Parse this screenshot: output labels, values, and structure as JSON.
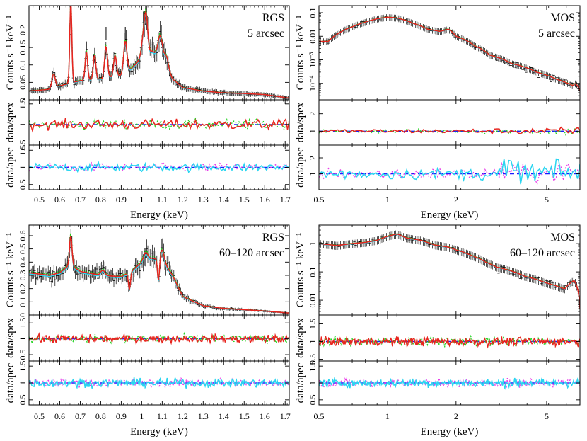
{
  "colors": {
    "data": "#000000",
    "model_red": "#e8251f",
    "model_green": "#22d422",
    "model_cyan": "#2ad5f0",
    "model_magenta": "#e83ce8",
    "reference_line": "#1a1aff"
  },
  "chart_data": [
    {
      "id": "rgs-5",
      "type": "line",
      "instrument": "RGS",
      "region": "5 arcsec",
      "xlabel": "Energy (keV)",
      "x_ticks": [
        "0.5",
        "0.6",
        "0.7",
        "0.8",
        "0.9",
        "1",
        "1.1",
        "1.2",
        "1.3",
        "1.4",
        "1.5",
        "1.6",
        "1.7"
      ],
      "xlim": [
        0.45,
        1.72
      ],
      "x_scale": "linear",
      "spectrum": {
        "ylabel": "Counts s⁻¹ keV⁻¹",
        "y_scale": "linear",
        "ylim": [
          0,
          0.27
        ],
        "y_ticks": [
          "0",
          "0.05",
          "0.1",
          "0.15",
          "0.2"
        ],
        "continuum": [
          [
            0.45,
            0.025
          ],
          [
            0.55,
            0.03
          ],
          [
            0.6,
            0.04
          ],
          [
            0.7,
            0.055
          ],
          [
            0.8,
            0.06
          ],
          [
            0.9,
            0.07
          ],
          [
            0.95,
            0.09
          ],
          [
            1.0,
            0.12
          ],
          [
            1.05,
            0.14
          ],
          [
            1.1,
            0.12
          ],
          [
            1.15,
            0.06
          ],
          [
            1.2,
            0.035
          ],
          [
            1.3,
            0.025
          ],
          [
            1.4,
            0.02
          ],
          [
            1.5,
            0.018
          ],
          [
            1.6,
            0.015
          ],
          [
            1.72,
            0.005
          ]
        ],
        "lines": [
          [
            0.654,
            0.23,
            0.005
          ],
          [
            0.57,
            0.04,
            0.008
          ],
          [
            0.73,
            0.08,
            0.006
          ],
          [
            0.77,
            0.07,
            0.006
          ],
          [
            0.826,
            0.09,
            0.007
          ],
          [
            0.87,
            0.06,
            0.007
          ],
          [
            0.92,
            0.09,
            0.008
          ],
          [
            1.01,
            0.06,
            0.01
          ],
          [
            1.022,
            0.09,
            0.008
          ],
          [
            1.09,
            0.06,
            0.01
          ],
          [
            1.12,
            0.03,
            0.01
          ]
        ],
        "marker_ticks": [
          0.826,
          0.92
        ],
        "series": [
          {
            "name": "",
            "color": "model_green",
            "style": "dotted"
          },
          {
            "name": "",
            "color": "model_cyan",
            "style": "solid"
          },
          {
            "name": "",
            "color": "model_red",
            "style": "solid"
          }
        ]
      },
      "ratio_panels": [
        {
          "ylabel": "data/spex",
          "ylim": [
            0.5,
            1.6
          ],
          "y_ticks": [
            "0.5",
            "1",
            "1.5"
          ],
          "series_colors": [
            "model_green",
            "model_red"
          ]
        },
        {
          "ylabel": "data/apec",
          "ylim": [
            0.35,
            1.65
          ],
          "y_ticks": [
            "0.5",
            "1",
            "1.5"
          ],
          "series_colors": [
            "model_magenta",
            "model_cyan"
          ]
        }
      ]
    },
    {
      "id": "mos-5",
      "type": "line",
      "instrument": "MOS",
      "region": "5 arcsec",
      "xlabel": "Energy (keV)",
      "x_ticks": [
        "0.5",
        "1",
        "2",
        "5"
      ],
      "xlim": [
        0.5,
        7.0
      ],
      "x_scale": "log",
      "spectrum": {
        "ylabel": "Counts s⁻¹ keV⁻¹",
        "y_scale": "log",
        "ylim": [
          2e-05,
          0.2
        ],
        "y_ticks": [
          "10⁻⁴",
          "10⁻³",
          "0.01",
          "0.1"
        ],
        "curve": [
          [
            0.55,
            0.006
          ],
          [
            0.6,
            0.012
          ],
          [
            0.7,
            0.025
          ],
          [
            0.8,
            0.04
          ],
          [
            0.9,
            0.055
          ],
          [
            1.0,
            0.065
          ],
          [
            1.1,
            0.06
          ],
          [
            1.3,
            0.035
          ],
          [
            1.5,
            0.02
          ],
          [
            1.7,
            0.016
          ],
          [
            1.85,
            0.02
          ],
          [
            2.0,
            0.01
          ],
          [
            2.4,
            0.004
          ],
          [
            2.8,
            0.0016
          ],
          [
            3.5,
            0.0007
          ],
          [
            4.5,
            0.0003
          ],
          [
            5.5,
            0.00015
          ],
          [
            6.5,
            8e-05
          ],
          [
            6.7,
            0.0001
          ],
          [
            7.0,
            5e-05
          ]
        ],
        "series": [
          {
            "name": "",
            "color": "model_green",
            "style": "dotted"
          },
          {
            "name": "",
            "color": "model_cyan",
            "style": "solid"
          },
          {
            "name": "",
            "color": "model_red",
            "style": "solid"
          }
        ]
      },
      "ratio_panels": [
        {
          "ylabel": "data/spex",
          "ylim": [
            0.2,
            2.8
          ],
          "y_ticks": [
            "1",
            "2"
          ],
          "series_colors": [
            "model_green",
            "model_red"
          ]
        },
        {
          "ylabel": "data/apec",
          "ylim": [
            0.0,
            2.8
          ],
          "y_ticks": [
            "1",
            "2"
          ],
          "series_colors": [
            "model_magenta",
            "model_cyan"
          ]
        }
      ]
    },
    {
      "id": "rgs-60",
      "type": "line",
      "instrument": "RGS",
      "region": "60–120 arcsec",
      "xlabel": "Energy (keV)",
      "x_ticks": [
        "0.5",
        "0.6",
        "0.7",
        "0.8",
        "0.9",
        "1",
        "1.1",
        "1.2",
        "1.3",
        "1.4",
        "1.5",
        "1.6",
        "1.7"
      ],
      "xlim": [
        0.45,
        1.72
      ],
      "x_scale": "linear",
      "spectrum": {
        "ylabel": "Counts s⁻¹ keV⁻¹",
        "y_scale": "linear",
        "ylim": [
          0,
          0.68
        ],
        "y_ticks": [
          "0",
          "0.1",
          "0.2",
          "0.3",
          "0.4",
          "0.5",
          "0.6"
        ],
        "continuum": [
          [
            0.45,
            0.32
          ],
          [
            0.5,
            0.31
          ],
          [
            0.55,
            0.3
          ],
          [
            0.6,
            0.32
          ],
          [
            0.65,
            0.38
          ],
          [
            0.7,
            0.33
          ],
          [
            0.8,
            0.3
          ],
          [
            0.9,
            0.29
          ],
          [
            0.95,
            0.33
          ],
          [
            1.0,
            0.4
          ],
          [
            1.05,
            0.43
          ],
          [
            1.1,
            0.42
          ],
          [
            1.15,
            0.3
          ],
          [
            1.2,
            0.14
          ],
          [
            1.3,
            0.07
          ],
          [
            1.4,
            0.05
          ],
          [
            1.5,
            0.04
          ],
          [
            1.6,
            0.03
          ],
          [
            1.72,
            0.015
          ]
        ],
        "lines": [
          [
            0.654,
            0.22,
            0.006
          ],
          [
            0.81,
            0.04,
            0.01
          ],
          [
            1.02,
            0.06,
            0.01
          ],
          [
            1.1,
            0.07,
            0.01
          ]
        ],
        "absorptions": [
          [
            0.94,
            0.13,
            0.005
          ],
          [
            1.082,
            0.17,
            0.005
          ]
        ],
        "series": [
          {
            "name": "",
            "color": "model_green",
            "style": "dotted"
          },
          {
            "name": "",
            "color": "model_cyan",
            "style": "solid"
          },
          {
            "name": "",
            "color": "model_red",
            "style": "solid"
          }
        ]
      },
      "ratio_panels": [
        {
          "ylabel": "data/spex",
          "ylim": [
            0.3,
            1.75
          ],
          "y_ticks": [
            "0.5",
            "1",
            "1.5"
          ],
          "series_colors": [
            "model_green",
            "model_red"
          ]
        },
        {
          "ylabel": "data/apec",
          "ylim": [
            0.35,
            1.65
          ],
          "y_ticks": [
            "0.5",
            "1",
            "1.5"
          ],
          "series_colors": [
            "model_magenta",
            "model_cyan"
          ]
        }
      ]
    },
    {
      "id": "mos-60",
      "type": "line",
      "instrument": "MOS",
      "region": "60–120 arcsec",
      "xlabel": "Energy (keV)",
      "x_ticks": [
        "0.5",
        "1",
        "2",
        "5"
      ],
      "xlim": [
        0.5,
        7.0
      ],
      "x_scale": "log",
      "spectrum": {
        "ylabel": "Counts s⁻¹ keV⁻¹",
        "y_scale": "log",
        "ylim": [
          0.003,
          4.5
        ],
        "y_ticks": [
          "0.01",
          "0.1",
          "1"
        ],
        "curve": [
          [
            0.5,
            1.0
          ],
          [
            0.6,
            0.85
          ],
          [
            0.7,
            1.0
          ],
          [
            0.8,
            1.1
          ],
          [
            0.9,
            1.3
          ],
          [
            1.0,
            1.8
          ],
          [
            1.1,
            2.2
          ],
          [
            1.2,
            1.6
          ],
          [
            1.4,
            1.3
          ],
          [
            1.6,
            0.9
          ],
          [
            1.85,
            0.75
          ],
          [
            2.0,
            0.6
          ],
          [
            2.3,
            0.4
          ],
          [
            2.7,
            0.22
          ],
          [
            3.0,
            0.15
          ],
          [
            4.0,
            0.07
          ],
          [
            5.0,
            0.04
          ],
          [
            6.0,
            0.025
          ],
          [
            6.6,
            0.05
          ],
          [
            6.8,
            0.03
          ],
          [
            7.0,
            0.005
          ]
        ],
        "series": [
          {
            "name": "",
            "color": "model_green",
            "style": "dotted"
          },
          {
            "name": "",
            "color": "model_cyan",
            "style": "solid"
          },
          {
            "name": "",
            "color": "model_red",
            "style": "solid"
          }
        ]
      },
      "ratio_panels": [
        {
          "ylabel": "data/spex",
          "ylim": [
            0.45,
            1.75
          ],
          "y_ticks": [
            "0.5",
            "1",
            "1.5"
          ],
          "series_colors": [
            "model_green",
            "model_red"
          ]
        },
        {
          "ylabel": "data/apec",
          "ylim": [
            0.35,
            1.65
          ],
          "y_ticks": [
            "0.5",
            "1",
            "1.5"
          ],
          "series_colors": [
            "model_magenta",
            "model_cyan"
          ]
        }
      ]
    }
  ]
}
